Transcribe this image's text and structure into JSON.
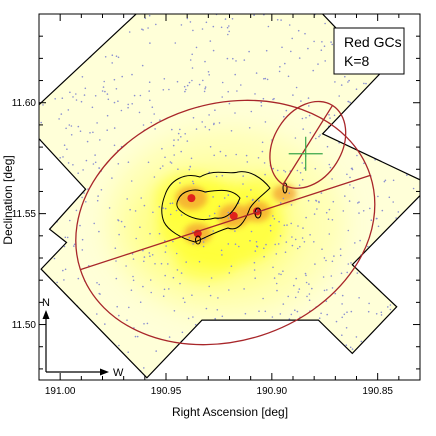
{
  "chart_data": {
    "type": "heatmap",
    "title": "",
    "xlabel": "Right Ascension [deg]",
    "ylabel": "Declination [deg]",
    "xlim": [
      191.01,
      190.83
    ],
    "ylim": [
      11.475,
      11.64
    ],
    "x_inverted": true,
    "x_ticks": [
      191.0,
      190.95,
      190.9,
      190.85
    ],
    "x_tick_labels": [
      "191.00",
      "190.95",
      "190.90",
      "190.85"
    ],
    "y_ticks": [
      11.5,
      11.55,
      11.6
    ],
    "y_tick_labels": [
      "11.50",
      "11.55",
      "11.60"
    ],
    "legend": {
      "line1": "Red GCs",
      "line2": "K=8",
      "placement": "top-right"
    },
    "compass": {
      "north_label": "N",
      "west_label": "W",
      "placement": "bottom-left"
    },
    "colors": {
      "density_low": "#ffffd8",
      "density_mid": "#ffff33",
      "density_high": "#f29a2e",
      "density_peak": "#e0221c",
      "contours": "#000000",
      "ellipses": "#a8262a",
      "center_cross": "#3aa64a",
      "points": "#8a8fd0",
      "footprint": "#000000"
    },
    "footprint_vertices": [
      [
        190.963,
        11.641
      ],
      [
        190.877,
        11.641
      ],
      [
        190.849,
        11.613
      ],
      [
        190.876,
        11.586
      ],
      [
        190.825,
        11.563
      ],
      [
        190.862,
        11.527
      ],
      [
        190.841,
        11.508
      ],
      [
        190.862,
        11.487
      ],
      [
        190.878,
        11.502
      ],
      [
        190.933,
        11.502
      ],
      [
        190.959,
        11.476
      ],
      [
        191.009,
        11.525
      ],
      [
        190.997,
        11.537
      ],
      [
        191.005,
        11.543
      ],
      [
        190.988,
        11.561
      ],
      [
        191.018,
        11.592
      ]
    ],
    "large_ellipse": {
      "center": [
        190.922,
        11.546
      ],
      "semi_major": 0.072,
      "semi_minor": 0.056,
      "pa_deg": 72
    },
    "small_ellipse": {
      "center": [
        190.883,
        11.581
      ],
      "semi_major": 0.022,
      "semi_minor": 0.016,
      "pa_deg": 32
    },
    "center_cross": [
      190.884,
      11.577
    ],
    "density_peaks": [
      {
        "x": 190.938,
        "y": 11.557,
        "level": 4
      },
      {
        "x": 190.918,
        "y": 11.549,
        "level": 4
      },
      {
        "x": 190.935,
        "y": 11.541,
        "level": 3
      },
      {
        "x": 190.907,
        "y": 11.551,
        "level": 3
      },
      {
        "x": 190.894,
        "y": 11.559,
        "level": 2
      }
    ]
  }
}
